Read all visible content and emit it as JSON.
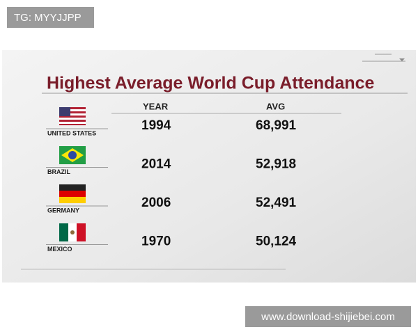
{
  "watermark": "TG: MYYJJPP",
  "graphic": {
    "title": "Highest Average World Cup Attendance",
    "headers": [
      "YEAR",
      "AVG"
    ],
    "rows": [
      {
        "country": "UNITED STATES",
        "year": "1994",
        "avg": "68,991"
      },
      {
        "country": "BRAZIL",
        "year": "2014",
        "avg": "52,918"
      },
      {
        "country": "GERMANY",
        "year": "2006",
        "avg": "52,491"
      },
      {
        "country": "MEXICO",
        "year": "1970",
        "avg": "50,124"
      }
    ]
  },
  "footer": "www.download-shijiebei.com"
}
